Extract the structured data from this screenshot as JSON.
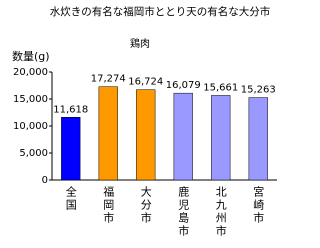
{
  "chart_data": {
    "type": "bar",
    "title": "水炊きの有名な福岡市ととり天の有名な大分市",
    "subtitle": "鶏肉",
    "y_label": "数量(g)",
    "categories": [
      "全国",
      "福岡市",
      "大分市",
      "鹿児島市",
      "北九州市",
      "宮崎市"
    ],
    "values": [
      11618,
      17274,
      16724,
      16079,
      15661,
      15263
    ],
    "value_labels": [
      "11,618",
      "17,274",
      "16,724",
      "16,079",
      "15,661",
      "15,263"
    ],
    "colors": [
      "#0000ff",
      "#ff9900",
      "#ff9900",
      "#9999ff",
      "#9999ff",
      "#9999ff"
    ],
    "ylim": [
      0,
      20000
    ],
    "yticks": [
      {
        "value": 0,
        "label": "0"
      },
      {
        "value": 5000,
        "label": "5,000"
      },
      {
        "value": 10000,
        "label": "10,000"
      },
      {
        "value": 15000,
        "label": "15,000"
      },
      {
        "value": 20000,
        "label": "20,000"
      }
    ],
    "grid": false
  }
}
